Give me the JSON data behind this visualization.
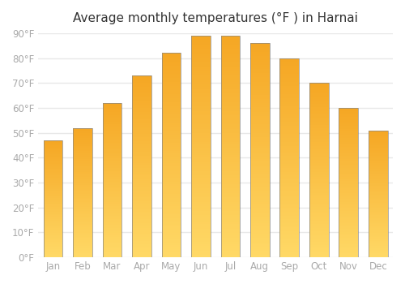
{
  "title": "Average monthly temperatures (°F ) in Harnai",
  "months": [
    "Jan",
    "Feb",
    "Mar",
    "Apr",
    "May",
    "Jun",
    "Jul",
    "Aug",
    "Sep",
    "Oct",
    "Nov",
    "Dec"
  ],
  "values": [
    47,
    52,
    62,
    73,
    82,
    89,
    89,
    86,
    80,
    70,
    60,
    51
  ],
  "bar_color_top": "#F5A623",
  "bar_color_bottom": "#FFD966",
  "bar_edge_color": "#888888",
  "ylim": [
    0,
    90
  ],
  "yticks": [
    0,
    10,
    20,
    30,
    40,
    50,
    60,
    70,
    80,
    90
  ],
  "ytick_labels": [
    "0°F",
    "10°F",
    "20°F",
    "30°F",
    "40°F",
    "50°F",
    "60°F",
    "70°F",
    "80°F",
    "90°F"
  ],
  "title_fontsize": 11,
  "tick_fontsize": 8.5,
  "tick_color": "#aaaaaa",
  "background_color": "#ffffff",
  "grid_color": "#e8e8e8",
  "bar_width": 0.65,
  "gradient_steps": 100
}
